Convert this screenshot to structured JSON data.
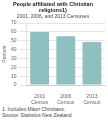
{
  "chart_data": {
    "type": "bar",
    "title": [
      "People affiliated with Christian",
      "religions1)"
    ],
    "subtitle": "2001, 2006, and 2013 Censuses",
    "categories": [
      "2001\nCensus",
      "2006\nCensus",
      "2013\nCensus"
    ],
    "values": [
      60.0,
      55.0,
      48.5
    ],
    "color": "#8ec0c2",
    "ylabel": "Percent",
    "ylim": [
      0,
      70
    ],
    "yticks": [
      0,
      10,
      20,
      30,
      40,
      50,
      60,
      70
    ],
    "grid": true,
    "footnotes": [
      "1. Includes Māori Christians.",
      "Source: Statistics New Zealand"
    ]
  }
}
